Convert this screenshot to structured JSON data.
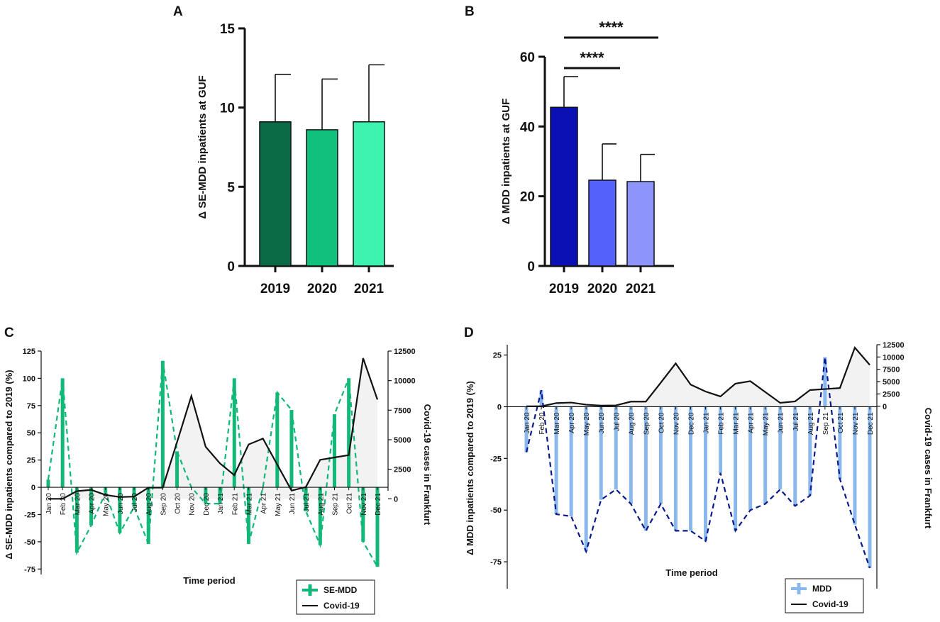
{
  "chart_data": [
    {
      "panel": "A",
      "type": "bar",
      "categories": [
        "2019",
        "2020",
        "2021"
      ],
      "values": [
        9.1,
        8.6,
        9.1
      ],
      "errors": [
        3.0,
        3.2,
        3.6
      ],
      "colors": [
        "#0b6b47",
        "#12c07e",
        "#3ef2b0"
      ],
      "ylabel": "Δ SE-MDD inpatients at GUF",
      "ylim": [
        0,
        15
      ],
      "yticks": [
        "0",
        "5",
        "10",
        "15"
      ]
    },
    {
      "panel": "B",
      "type": "bar",
      "categories": [
        "2019",
        "2020",
        "2021"
      ],
      "values": [
        45.5,
        24.6,
        24.2
      ],
      "errors": [
        8.8,
        10.4,
        7.8
      ],
      "colors": [
        "#0a10b4",
        "#5561fb",
        "#8d95fc"
      ],
      "ylabel": "Δ MDD inpatients at GUF",
      "ylim": [
        0,
        60
      ],
      "yticks": [
        "0",
        "20",
        "40",
        "60"
      ],
      "significance": [
        {
          "from": "2019",
          "to": "2020",
          "label": "****"
        },
        {
          "from": "2019",
          "to": "2021",
          "label": "****"
        }
      ]
    },
    {
      "panel": "C",
      "type": "bar+line",
      "categories": [
        "Jan 20",
        "Feb 20",
        "Mar 20",
        "Apr 20",
        "May 20",
        "Jun 20",
        "Jul 20",
        "Aug 20",
        "Sep 20",
        "Oct 20",
        "Nov 20",
        "Dec 20",
        "Jan 21",
        "Feb 21",
        "Mar 21",
        "Apr 21",
        "May 21",
        "Jun 21",
        "Jul 21",
        "Aug 21",
        "Sep 21",
        "Oct 21",
        "Nov 21",
        "Dec 21"
      ],
      "series": [
        {
          "name": "SE-MDD",
          "axis": "left",
          "values": [
            7,
            100,
            -60,
            -35,
            -5,
            -42,
            -18,
            -52,
            116,
            33,
            0,
            -15,
            -15,
            100,
            -52,
            0,
            87,
            71,
            -22,
            -53,
            67,
            100,
            -50,
            -73
          ]
        },
        {
          "name": "Covid-19",
          "axis": "right",
          "values": [
            0,
            0,
            650,
            760,
            330,
            150,
            190,
            950,
            950,
            4800,
            8700,
            4400,
            3000,
            2000,
            4600,
            5100,
            2900,
            700,
            1000,
            3300,
            3500,
            3700,
            11900,
            8400
          ]
        }
      ],
      "ylabel": "Δ SE-MDD inpatients compared to 2019 (%)",
      "y2label": "Covid-19 cases in  Frankfurt",
      "xlabel": "Time period",
      "ylim": [
        -80,
        125
      ],
      "yticks": [
        "125",
        "100",
        "75",
        "50",
        "25",
        "0",
        "-25",
        "-50",
        "-75"
      ],
      "y2lim": [
        -6400,
        12500
      ],
      "y2ticks": [
        "12500",
        "10000",
        "7500",
        "5000",
        "2500",
        "0"
      ],
      "legend": [
        "SE-MDD",
        "Covid-19"
      ]
    },
    {
      "panel": "D",
      "type": "bar+line",
      "categories": [
        "Jan 20",
        "Feb 20",
        "Mar 20",
        "Apr 20",
        "May 20",
        "Jun 20",
        "Jul 20",
        "Aug 20",
        "Sep 20",
        "Oct 20",
        "Nov 20",
        "Dec 20",
        "Jan 21",
        "Feb 21",
        "Mar 21",
        "Apr 21",
        "May 21",
        "Jun 21",
        "Jul 21",
        "Aug 21",
        "Sep 21",
        "Oct 21",
        "Nov 21",
        "Dec 21"
      ],
      "series": [
        {
          "name": "MDD",
          "axis": "left",
          "values": [
            -22,
            8,
            -52,
            -53,
            -70,
            -45,
            -40,
            -47,
            -60,
            -47,
            -60,
            -60,
            -65,
            -32,
            -60,
            -50,
            -47,
            -40,
            -48,
            -43,
            24,
            -35,
            -57,
            -78
          ]
        },
        {
          "name": "Covid-19",
          "axis": "right",
          "values": [
            0,
            0,
            650,
            760,
            330,
            150,
            190,
            950,
            950,
            4800,
            8700,
            4400,
            3000,
            2000,
            4600,
            5100,
            2900,
            700,
            1000,
            3300,
            3500,
            3700,
            11900,
            8400
          ]
        }
      ],
      "ylabel": "Δ MDD inpatients compared to 2019 (%)",
      "y2label": "Covid-19 cases in  Frankfurt",
      "xlabel": "Time period",
      "ylim": [
        -88,
        30
      ],
      "yticks": [
        "25",
        "0",
        "-25",
        "-50",
        "-75"
      ],
      "y2lim": [
        -37000,
        12500
      ],
      "y2ticks": [
        "12500",
        "10000",
        "7500",
        "5000",
        "2500",
        "0"
      ],
      "legend": [
        "MDD",
        "Covid-19"
      ]
    }
  ]
}
